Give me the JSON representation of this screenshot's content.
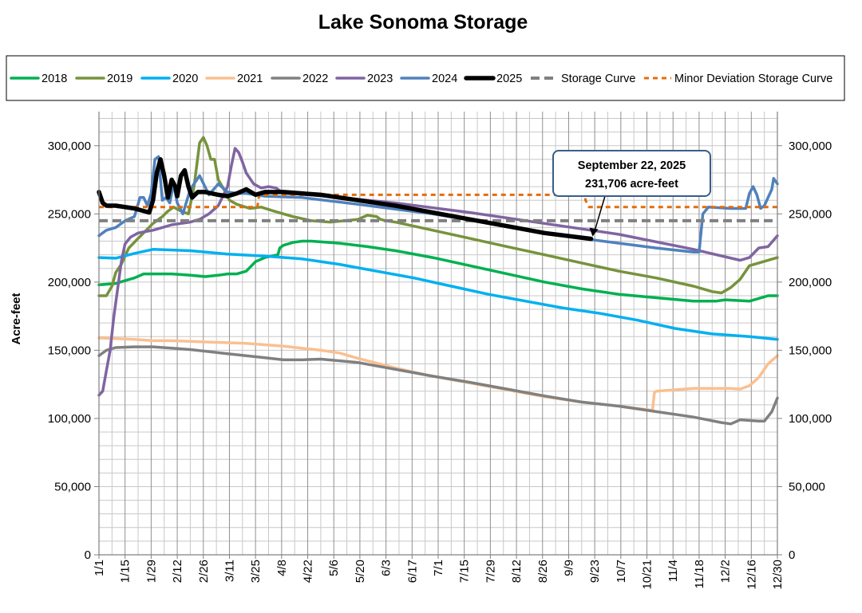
{
  "chart_data": {
    "type": "line",
    "title": "Lake Sonoma Storage",
    "ylabel": "Acre-feet",
    "xlabel": "",
    "ylim": [
      0,
      325000
    ],
    "y_ticks": [
      0,
      50000,
      100000,
      150000,
      200000,
      250000,
      300000
    ],
    "y_tick_labels": [
      "0",
      "50,000",
      "100,000",
      "150,000",
      "200,000",
      "250,000",
      "300,000"
    ],
    "x_axis": "day-of-year, 1 to 365",
    "x_ticks": [
      1,
      15,
      29,
      43,
      57,
      71,
      85,
      99,
      113,
      127,
      141,
      155,
      169,
      183,
      197,
      211,
      225,
      239,
      253,
      267,
      281,
      295,
      309,
      323,
      337,
      351,
      365
    ],
    "x_tick_labels": [
      "1/1",
      "1/15",
      "1/29",
      "2/12",
      "2/26",
      "3/11",
      "3/25",
      "4/8",
      "4/22",
      "5/6",
      "5/20",
      "6/3",
      "6/17",
      "7/1",
      "7/15",
      "7/29",
      "8/12",
      "8/26",
      "9/9",
      "9/23",
      "10/7",
      "10/21",
      "11/4",
      "11/18",
      "12/2",
      "12/16",
      "12/30"
    ],
    "grid": true,
    "legend_position": "top",
    "series": [
      {
        "name": "2018",
        "color": "#00B050",
        "width": 3.5,
        "dash": "",
        "x": [
          1,
          10,
          15,
          20,
          25,
          40,
          50,
          58,
          65,
          70,
          75,
          80,
          85,
          90,
          97,
          98,
          100,
          105,
          110,
          115,
          130,
          145,
          160,
          180,
          200,
          220,
          240,
          260,
          280,
          300,
          320,
          332,
          337,
          350,
          355,
          360,
          365
        ],
        "y": [
          198000,
          199000,
          201000,
          203000,
          206000,
          206000,
          205000,
          204000,
          205000,
          206000,
          206000,
          208000,
          215000,
          218000,
          220000,
          225000,
          227000,
          229000,
          230000,
          230000,
          228500,
          226000,
          223000,
          218000,
          212000,
          206000,
          200000,
          195000,
          191000,
          188500,
          186000,
          186000,
          187000,
          186000,
          188000,
          190000,
          190000
        ]
      },
      {
        "name": "2019",
        "color": "#77933C",
        "width": 3.5,
        "dash": "",
        "x": [
          1,
          5,
          8,
          10,
          13,
          17,
          22,
          30,
          35,
          38,
          41,
          45,
          49,
          52,
          55,
          57,
          59,
          61,
          63,
          65,
          68,
          71,
          75,
          82,
          88,
          95,
          105,
          115,
          125,
          140,
          145,
          150,
          152,
          155,
          160,
          180,
          200,
          220,
          240,
          260,
          280,
          300,
          320,
          330,
          335,
          340,
          345,
          350,
          355,
          365
        ],
        "y": [
          190000,
          190000,
          197000,
          207000,
          213000,
          225000,
          232000,
          243000,
          248000,
          252000,
          255000,
          252000,
          250000,
          270000,
          302000,
          306000,
          300000,
          290000,
          290000,
          275000,
          268000,
          260000,
          257000,
          254000,
          255000,
          252000,
          248000,
          245000,
          244000,
          246000,
          249000,
          248000,
          246000,
          245000,
          244000,
          238000,
          232000,
          226000,
          220000,
          214000,
          208000,
          203000,
          197000,
          193000,
          192000,
          196000,
          202000,
          212000,
          214000,
          218000
        ]
      },
      {
        "name": "2020",
        "color": "#00B0F0",
        "width": 3.5,
        "dash": "",
        "x": [
          1,
          10,
          20,
          30,
          50,
          70,
          90,
          110,
          130,
          150,
          170,
          190,
          210,
          230,
          250,
          270,
          290,
          310,
          330,
          350,
          365
        ],
        "y": [
          218000,
          217500,
          221000,
          224000,
          223000,
          220500,
          219000,
          217000,
          213000,
          208000,
          203000,
          197000,
          191000,
          186000,
          181000,
          177000,
          172000,
          166000,
          162000,
          160000,
          158000
        ]
      },
      {
        "name": "2021",
        "color": "#FAC090",
        "width": 3.5,
        "dash": "",
        "x": [
          1,
          10,
          20,
          30,
          40,
          50,
          60,
          80,
          100,
          120,
          130,
          140,
          160,
          180,
          200,
          220,
          240,
          260,
          280,
          298,
          299,
          300,
          310,
          320,
          340,
          345,
          350,
          355,
          360,
          365
        ],
        "y": [
          159000,
          158500,
          158000,
          157000,
          157000,
          156500,
          156000,
          155000,
          153000,
          150000,
          148000,
          144000,
          137000,
          131000,
          126000,
          121000,
          116000,
          112000,
          109000,
          106000,
          119000,
          120000,
          121000,
          122000,
          122000,
          121500,
          124000,
          130000,
          140000,
          146000
        ]
      },
      {
        "name": "2022",
        "color": "#808080",
        "width": 3.5,
        "dash": "",
        "x": [
          1,
          5,
          10,
          20,
          30,
          40,
          50,
          60,
          70,
          80,
          90,
          100,
          110,
          120,
          140,
          160,
          180,
          200,
          220,
          240,
          260,
          280,
          300,
          320,
          335,
          340,
          345,
          355,
          358,
          362,
          365
        ],
        "y": [
          146000,
          150000,
          152000,
          152500,
          152500,
          151500,
          150500,
          149000,
          147500,
          146000,
          144500,
          143000,
          143000,
          143500,
          141000,
          136000,
          131000,
          126500,
          121500,
          116500,
          112000,
          109000,
          105000,
          101000,
          97000,
          96000,
          99000,
          98000,
          98000,
          105000,
          115000
        ]
      },
      {
        "name": "2023",
        "color": "#8064A2",
        "width": 3.5,
        "dash": "",
        "x": [
          1,
          3,
          5,
          7,
          9,
          11,
          13,
          15,
          18,
          22,
          26,
          30,
          35,
          40,
          45,
          50,
          55,
          60,
          65,
          70,
          72,
          74,
          76,
          78,
          80,
          84,
          88,
          92,
          96,
          100,
          110,
          130,
          160,
          200,
          240,
          280,
          320,
          345,
          350,
          355,
          360,
          365
        ],
        "y": [
          117000,
          120000,
          135000,
          150000,
          175000,
          195000,
          215000,
          228000,
          233000,
          236000,
          237000,
          238000,
          240000,
          242000,
          243000,
          244000,
          246000,
          250000,
          256000,
          270000,
          285000,
          298000,
          295000,
          288000,
          280000,
          272000,
          269000,
          270000,
          269000,
          265000,
          264500,
          262000,
          258000,
          251000,
          243000,
          235000,
          224000,
          216000,
          218000,
          225000,
          226000,
          234000
        ]
      },
      {
        "name": "2024",
        "color": "#4F81BD",
        "width": 3.5,
        "dash": "",
        "x": [
          1,
          5,
          10,
          15,
          20,
          23,
          25,
          27,
          29,
          31,
          33,
          34,
          35,
          37,
          39,
          41,
          43,
          46,
          50,
          55,
          60,
          65,
          70,
          75,
          80,
          90,
          110,
          140,
          180,
          220,
          260,
          300,
          320,
          323,
          325,
          328,
          340,
          348,
          350,
          352,
          354,
          356,
          358,
          360,
          362,
          363,
          365
        ],
        "y": [
          234000,
          238000,
          240000,
          245000,
          248000,
          262000,
          262000,
          256000,
          265000,
          290000,
          292000,
          275000,
          260000,
          262000,
          258000,
          272000,
          258000,
          250000,
          268000,
          278000,
          264000,
          272000,
          266000,
          265000,
          265000,
          263000,
          262000,
          257000,
          250000,
          241000,
          232000,
          225000,
          222000,
          222000,
          250000,
          255000,
          254000,
          254000,
          265000,
          270000,
          264000,
          254000,
          256000,
          262000,
          268000,
          276000,
          272000
        ]
      },
      {
        "name": "2025",
        "color": "#000000",
        "width": 5.5,
        "dash": "",
        "x": [
          1,
          3,
          5,
          10,
          20,
          28,
          30,
          32,
          34,
          36,
          38,
          40,
          42,
          43,
          45,
          47,
          49,
          51,
          54,
          58,
          65,
          70,
          75,
          80,
          85,
          90,
          100,
          120,
          140,
          160,
          180,
          200,
          220,
          240,
          265
        ],
        "y": [
          266000,
          258000,
          256000,
          256000,
          254000,
          251000,
          260000,
          280000,
          290000,
          278000,
          262000,
          275000,
          270000,
          263000,
          278000,
          282000,
          270000,
          262000,
          266000,
          266000,
          264000,
          263000,
          265000,
          268000,
          264000,
          266000,
          266000,
          264000,
          260000,
          256000,
          251000,
          246000,
          241000,
          236000,
          231706
        ]
      },
      {
        "name": "Storage Curve",
        "color": "#808080",
        "width": 4,
        "dash": "11 6",
        "x": [
          1,
          365
        ],
        "y": [
          245000,
          245000
        ]
      },
      {
        "name": "Minor Deviation Storage Curve",
        "color": "#E46C0A",
        "width": 3,
        "dash": "6 5",
        "x": [
          1,
          86,
          87,
          262,
          262,
          264,
          365
        ],
        "y": [
          255000,
          255000,
          264000,
          264000,
          260000,
          255000,
          255000
        ]
      }
    ],
    "annotation": {
      "line1": "September 22, 2025",
      "line2": "231,706 acre-feet",
      "x": 265,
      "y": 231706
    }
  }
}
